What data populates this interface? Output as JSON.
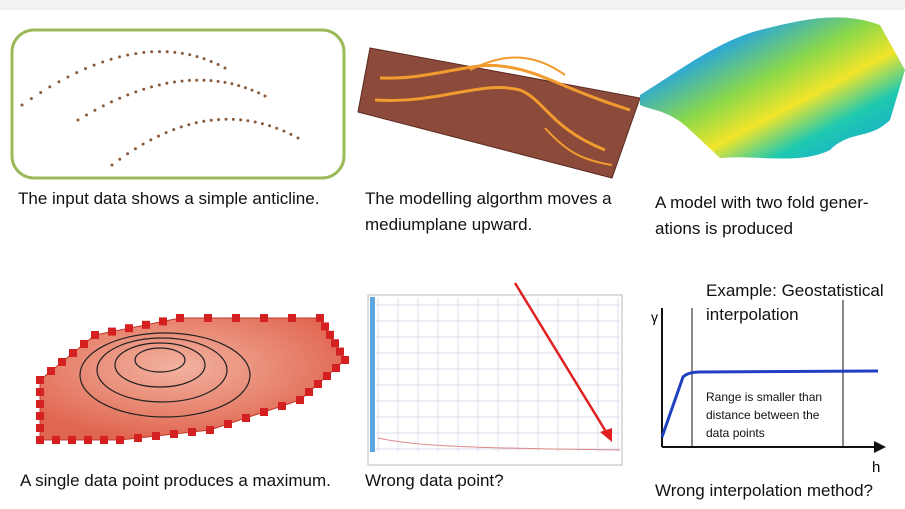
{
  "panels": [
    {
      "caption": [
        "The input data shows a simple anticline."
      ]
    },
    {
      "caption": [
        "The modelling algorthm moves a",
        "mediumplane upward."
      ]
    },
    {
      "caption": [
        "A model with two fold gener-",
        "ations is produced"
      ]
    },
    {
      "caption": [
        "A single data point produces a maximum."
      ]
    },
    {
      "caption": [
        "Wrong data point?"
      ]
    },
    {
      "caption": [
        "Wrong  interpolation method?"
      ],
      "heading": [
        "Example: Geostatistical",
        "interpolation"
      ],
      "y_label": "γ",
      "x_label": "h",
      "note": [
        "Range is smaller than",
        "distance between the",
        "data points"
      ]
    }
  ]
}
